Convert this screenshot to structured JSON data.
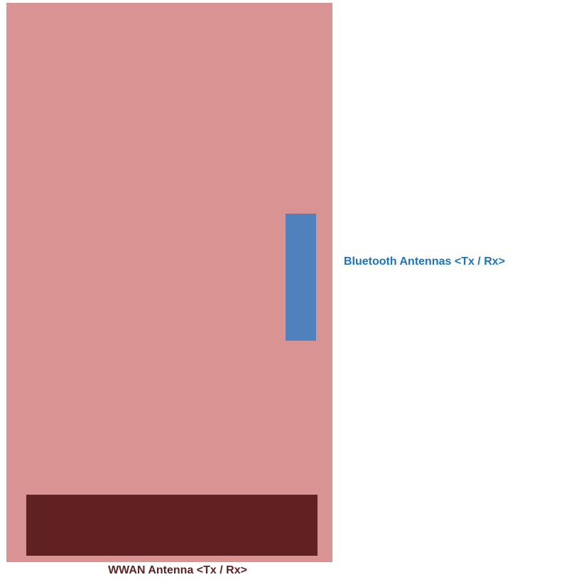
{
  "diagram": {
    "labels": {
      "bluetooth": "Bluetooth Antennas <Tx / Rx>",
      "wwan": "WWAN Antenna <Tx / Rx>"
    },
    "colors": {
      "device_body": "#d99393",
      "bluetooth_antenna": "#5081bd",
      "bluetooth_label": "#1e73be",
      "wwan_antenna": "#602123",
      "wwan_label": "#602123"
    }
  }
}
